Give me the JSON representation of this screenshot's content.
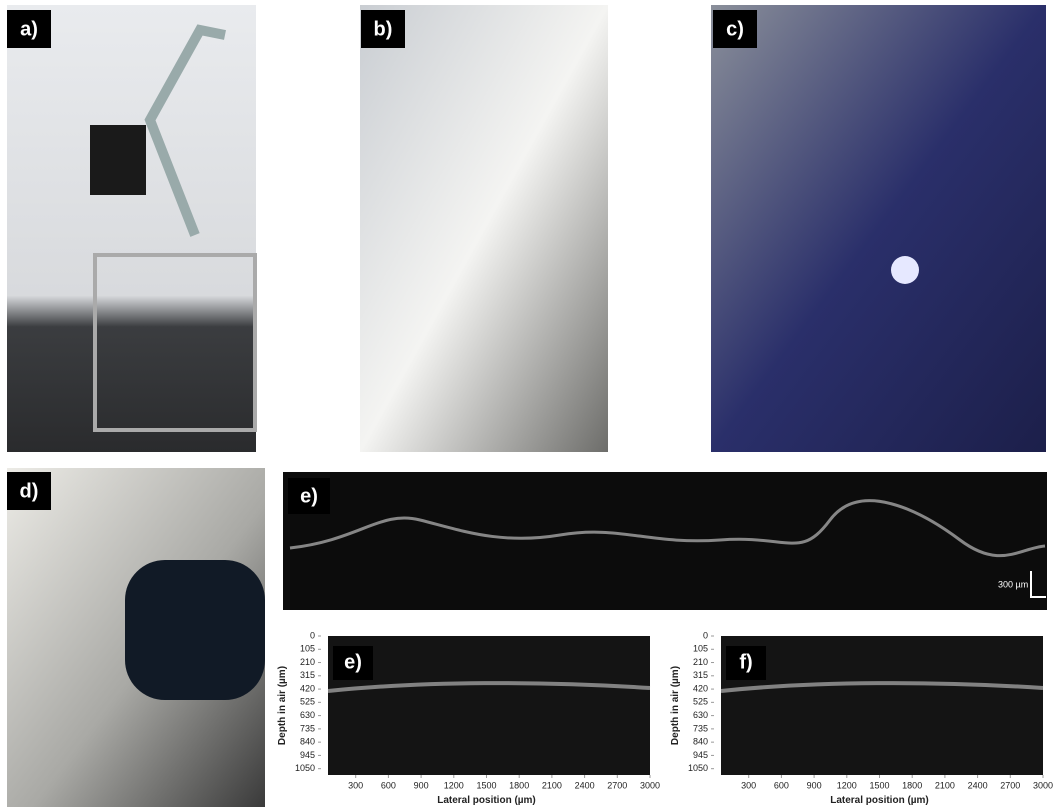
{
  "panels": [
    {
      "label": "a)"
    },
    {
      "label": "b)"
    },
    {
      "label": "c)"
    },
    {
      "label": "d)"
    },
    {
      "label": "e)",
      "scale_bar": "300 µm"
    }
  ],
  "oct_plots": [
    {
      "label": "e)",
      "y_label": "Depth in air (µm)",
      "x_label": "Lateral position (µm)",
      "ylim": [
        0,
        1100
      ],
      "yticks": [
        0,
        105,
        210,
        315,
        420,
        525,
        630,
        735,
        840,
        945,
        1050
      ],
      "xlim": [
        0,
        3000
      ],
      "xticks": [
        300,
        600,
        900,
        1200,
        1500,
        1800,
        2100,
        2400,
        2700,
        3000
      ]
    },
    {
      "label": "f)",
      "y_label": "Depth in air (µm)",
      "x_label": "Lateral position (µm)",
      "ylim": [
        0,
        1100
      ],
      "yticks": [
        0,
        105,
        210,
        315,
        420,
        525,
        630,
        735,
        840,
        945,
        1050
      ],
      "xlim": [
        0,
        3000
      ],
      "xticks": [
        300,
        600,
        900,
        1200,
        1500,
        1800,
        2100,
        2400,
        2700,
        3000
      ]
    }
  ]
}
